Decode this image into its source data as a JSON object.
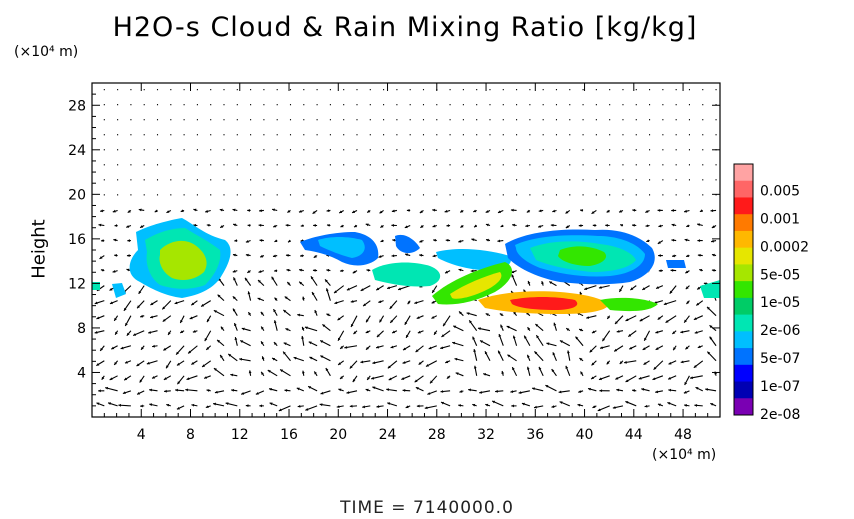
{
  "chart_data": {
    "type": "heatmap",
    "title": "H2O-s Cloud & Rain Mixing Ratio [kg/kg]",
    "ylabel": "Height",
    "x_unit": "(×10⁴ m)",
    "y_unit": "(×10⁴ m)",
    "footer": "TIME = 7140000.0",
    "xlim": [
      0,
      51
    ],
    "ylim": [
      0,
      30
    ],
    "x_ticks": [
      "4",
      "8",
      "12",
      "16",
      "20",
      "24",
      "28",
      "32",
      "36",
      "40",
      "44",
      "48"
    ],
    "y_ticks": [
      "4",
      "8",
      "12",
      "16",
      "20",
      "24",
      "28"
    ],
    "x_tick_values": [
      4,
      8,
      12,
      16,
      20,
      24,
      28,
      32,
      36,
      40,
      44,
      48
    ],
    "y_tick_values": [
      4,
      8,
      12,
      16,
      20,
      24,
      28
    ],
    "colorbar": {
      "labels": [
        "0.005",
        "0.001",
        "0.0002",
        "5e-05",
        "1e-05",
        "2e-06",
        "5e-07",
        "1e-07",
        "2e-08"
      ],
      "colors": [
        "#ffa3a3",
        "#ff6666",
        "#ff1a1a",
        "#ff7a00",
        "#ffb800",
        "#e6e600",
        "#a6e600",
        "#33e600",
        "#00cc66",
        "#00e6b3",
        "#00bfff",
        "#0073ff",
        "#0000ff",
        "#0000b3",
        "#7a00b3"
      ]
    },
    "cloud_regions": [
      {
        "x": [
          4,
          10
        ],
        "y": [
          11,
          17
        ],
        "level": "5e-05"
      },
      {
        "x": [
          17,
          24
        ],
        "y": [
          13,
          16
        ],
        "level": "1e-07"
      },
      {
        "x": [
          25,
          29
        ],
        "y": [
          11.5,
          14
        ],
        "level": "2e-06"
      },
      {
        "x": [
          29,
          33
        ],
        "y": [
          11,
          13
        ],
        "level": "5e-05"
      },
      {
        "x": [
          32,
          42
        ],
        "y": [
          9.5,
          11
        ],
        "level": "0.001"
      },
      {
        "x": [
          34,
          46
        ],
        "y": [
          12,
          16
        ],
        "level": "2e-06"
      }
    ]
  }
}
